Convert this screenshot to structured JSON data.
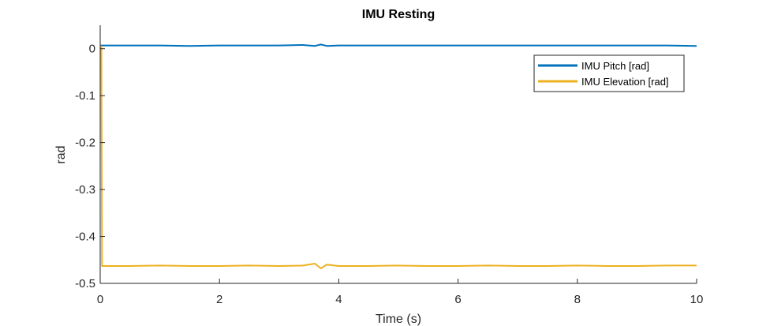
{
  "chart_data": {
    "type": "line",
    "title": "IMU Resting",
    "xlabel": "Time (s)",
    "ylabel": "rad",
    "xlim": [
      0,
      10
    ],
    "ylim": [
      -0.5,
      0.05
    ],
    "xticks": [
      0,
      2,
      4,
      6,
      8,
      10
    ],
    "xtick_labels": [
      "0",
      "2",
      "4",
      "6",
      "8",
      "10"
    ],
    "yticks": [
      0,
      -0.1,
      -0.2,
      -0.3,
      -0.4,
      -0.5
    ],
    "ytick_labels": [
      "0",
      "-0.1",
      "-0.2",
      "-0.3",
      "-0.4",
      "-0.5"
    ],
    "grid": false,
    "legend_position": "top-right",
    "series": [
      {
        "name": "IMU Pitch [rad]",
        "color": "#0072BD",
        "x": [
          0,
          0.5,
          1,
          1.5,
          2,
          2.5,
          3,
          3.4,
          3.6,
          3.7,
          3.8,
          4,
          4.5,
          5,
          5.5,
          6,
          6.5,
          7,
          7.5,
          8,
          8.5,
          9,
          9.5,
          10
        ],
        "y": [
          0.007,
          0.007,
          0.007,
          0.006,
          0.007,
          0.007,
          0.007,
          0.008,
          0.006,
          0.009,
          0.006,
          0.007,
          0.007,
          0.007,
          0.007,
          0.007,
          0.007,
          0.007,
          0.007,
          0.007,
          0.007,
          0.007,
          0.007,
          0.006
        ]
      },
      {
        "name": "IMU Elevation [rad]",
        "color": "#EDB120",
        "x": [
          0,
          0.02,
          0.03,
          0.5,
          1,
          1.5,
          2,
          2.5,
          3,
          3.4,
          3.6,
          3.7,
          3.8,
          4,
          4.5,
          5,
          5.5,
          6,
          6.5,
          7,
          7.5,
          8,
          8.5,
          9,
          9.5,
          10
        ],
        "y": [
          0.005,
          0.005,
          -0.463,
          -0.463,
          -0.462,
          -0.463,
          -0.463,
          -0.462,
          -0.463,
          -0.462,
          -0.458,
          -0.468,
          -0.46,
          -0.463,
          -0.463,
          -0.462,
          -0.463,
          -0.463,
          -0.462,
          -0.463,
          -0.463,
          -0.462,
          -0.463,
          -0.463,
          -0.462,
          -0.462
        ]
      }
    ]
  }
}
